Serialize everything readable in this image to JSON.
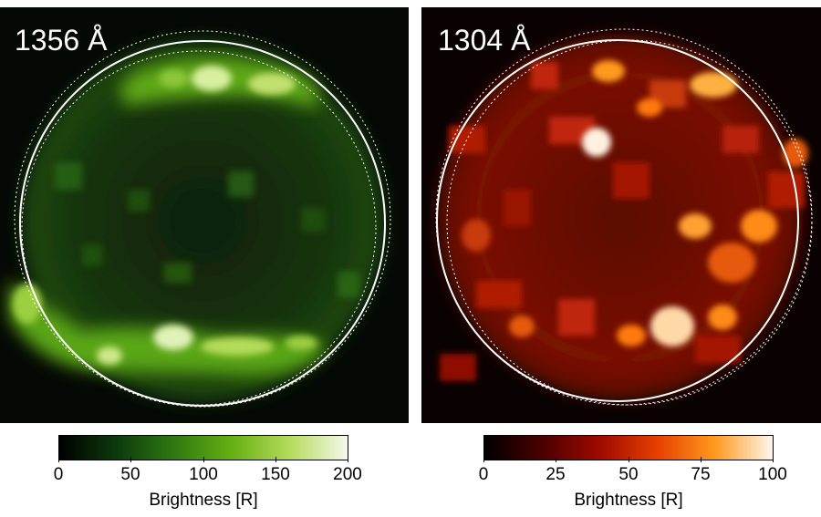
{
  "panels": [
    {
      "id": "1356",
      "label": "1356 Å",
      "colormap": [
        "#000000",
        "#0d3a0d",
        "#2f7a10",
        "#66b012",
        "#b6db5c",
        "#f4f9ec"
      ],
      "colorbar": {
        "ticks": [
          "0",
          "50",
          "100",
          "150",
          "200"
        ],
        "title": "Brightness [R]",
        "range": [
          0,
          200
        ]
      }
    },
    {
      "id": "1304",
      "label": "1304 Å",
      "colormap": [
        "#000000",
        "#4a0000",
        "#9e0a00",
        "#e64000",
        "#ff9a1e",
        "#fff6ee"
      ],
      "colorbar": {
        "ticks": [
          "0",
          "25",
          "50",
          "75",
          "100"
        ],
        "title": "Brightness [R]",
        "range": [
          0,
          100
        ]
      }
    }
  ]
}
